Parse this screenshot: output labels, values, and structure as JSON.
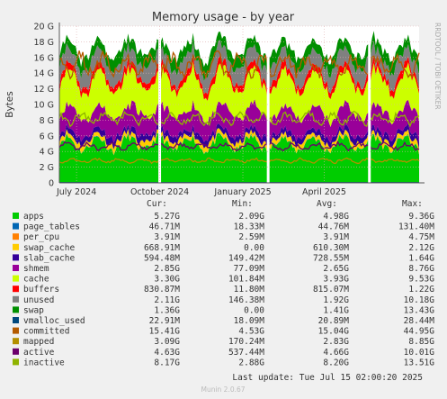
{
  "chart_data": {
    "type": "area",
    "title": "Memory usage - by year",
    "ylabel": "Bytes",
    "side_label": "RRDTOOL / TOBI OETIKER",
    "ylim": [
      0,
      20
    ],
    "y_unit": "G",
    "y_ticks": [
      "0",
      "2 G",
      "4 G",
      "6 G",
      "8 G",
      "10 G",
      "12 G",
      "14 G",
      "16 G",
      "18 G",
      "20 G"
    ],
    "x_range": [
      "2024-06-12",
      "2025-07-15"
    ],
    "x_ticks": [
      {
        "date": "2024-07-01",
        "label": "July 2024"
      },
      {
        "date": "2024-10-01",
        "label": "October 2024"
      },
      {
        "date": "2025-01-01",
        "label": "January 2025"
      },
      {
        "date": "2025-04-01",
        "label": "April 2025"
      }
    ],
    "gaps": [
      "2024-10-01",
      "2025-01-29",
      "2025-05-21"
    ],
    "stack_order_note": "",
    "columns": [
      "Cur:",
      "Min:",
      "Avg:",
      "Max:"
    ],
    "series": [
      {
        "name": "apps",
        "color": "#00cc00",
        "kind": "area",
        "cur": "5.27G",
        "min": "2.09G",
        "avg": "4.98G",
        "max": "9.36G",
        "level": 4.98
      },
      {
        "name": "page_tables",
        "color": "#0066b3",
        "kind": "area",
        "cur": "46.71M",
        "min": "18.33M",
        "avg": "44.76M",
        "max": "131.40M",
        "level": 0.045
      },
      {
        "name": "per_cpu",
        "color": "#ff8000",
        "kind": "area",
        "cur": "3.91M",
        "min": "2.59M",
        "avg": "3.91M",
        "max": "4.75M",
        "level": 0.004
      },
      {
        "name": "swap_cache",
        "color": "#ffcc00",
        "kind": "area",
        "cur": "668.91M",
        "min": "0.00",
        "avg": "610.30M",
        "max": "2.12G",
        "level": 0.61
      },
      {
        "name": "slab_cache",
        "color": "#330099",
        "kind": "area",
        "cur": "594.48M",
        "min": "149.42M",
        "avg": "728.55M",
        "max": "1.64G",
        "level": 0.73
      },
      {
        "name": "shmem",
        "color": "#990099",
        "kind": "area",
        "cur": "2.85G",
        "min": "77.09M",
        "avg": "2.65G",
        "max": "8.76G",
        "level": 2.65
      },
      {
        "name": "cache",
        "color": "#ccff00",
        "kind": "area",
        "cur": "3.30G",
        "min": "101.84M",
        "avg": "3.93G",
        "max": "9.53G",
        "level": 3.93
      },
      {
        "name": "buffers",
        "color": "#ff0000",
        "kind": "area",
        "cur": "830.87M",
        "min": "11.80M",
        "avg": "815.07M",
        "max": "1.22G",
        "level": 0.815
      },
      {
        "name": "unused",
        "color": "#808080",
        "kind": "area",
        "cur": "2.11G",
        "min": "146.38M",
        "avg": "1.92G",
        "max": "10.18G",
        "level": 1.92
      },
      {
        "name": "swap",
        "color": "#008f00",
        "kind": "area",
        "cur": "1.36G",
        "min": "0.00",
        "avg": "1.41G",
        "max": "13.43G",
        "level": 1.41
      },
      {
        "name": "vmalloc_used",
        "color": "#00487d",
        "kind": "line",
        "cur": "22.91M",
        "min": "18.09M",
        "avg": "20.89M",
        "max": "28.44M",
        "level": 0.021
      },
      {
        "name": "committed",
        "color": "#b35a00",
        "kind": "line",
        "cur": "15.41G",
        "min": "4.53G",
        "avg": "15.04G",
        "max": "44.95G",
        "level": 15.04
      },
      {
        "name": "mapped",
        "color": "#b38f00",
        "kind": "line",
        "cur": "3.09G",
        "min": "170.24M",
        "avg": "2.83G",
        "max": "8.85G",
        "level": 2.83
      },
      {
        "name": "active",
        "color": "#6b006b",
        "kind": "line",
        "cur": "4.63G",
        "min": "537.44M",
        "avg": "4.66G",
        "max": "10.01G",
        "level": 4.66
      },
      {
        "name": "inactive",
        "color": "#8fb300",
        "kind": "line",
        "cur": "8.17G",
        "min": "2.88G",
        "avg": "8.20G",
        "max": "13.51G",
        "level": 8.2
      }
    ],
    "last_update": "Last update: Tue Jul 15 02:00:20 2025",
    "footer": "Munin 2.0.67"
  }
}
